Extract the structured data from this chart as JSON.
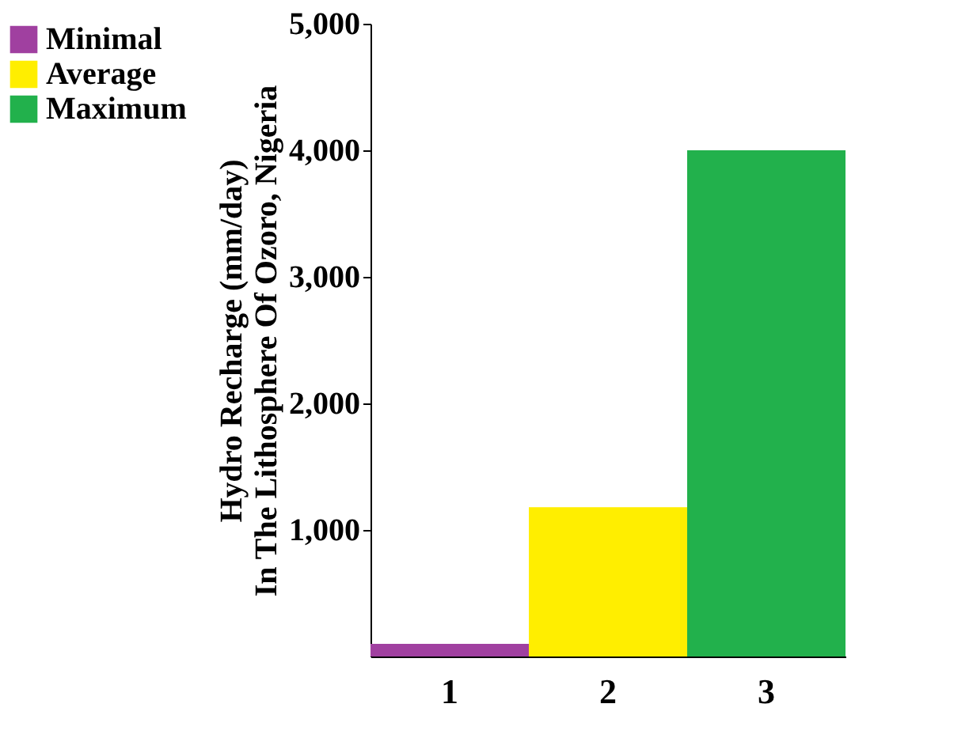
{
  "chart_data": {
    "type": "bar",
    "ylabel": "Hydro Recharge    (mm/day)\nIn The Lithosphere Of Ozoro, Nigeria",
    "categories": [
      "1",
      "2",
      "3"
    ],
    "series": [
      {
        "name": "Minimal",
        "color": "#a040a0",
        "values": [
          100,
          null,
          null
        ]
      },
      {
        "name": "Average",
        "color": "#ffee00",
        "values": [
          null,
          1180,
          null
        ]
      },
      {
        "name": "Maximum",
        "color": "#22b14c",
        "values": [
          null,
          null,
          4000
        ]
      }
    ],
    "ylim": [
      0,
      5000
    ],
    "yticks": [
      {
        "value": 1000,
        "label": "1,000"
      },
      {
        "value": 2000,
        "label": "2,000"
      },
      {
        "value": 3000,
        "label": "3,000"
      },
      {
        "value": 4000,
        "label": "4,000"
      },
      {
        "value": 5000,
        "label": "5,000"
      }
    ],
    "grid": false,
    "legend": "left"
  }
}
